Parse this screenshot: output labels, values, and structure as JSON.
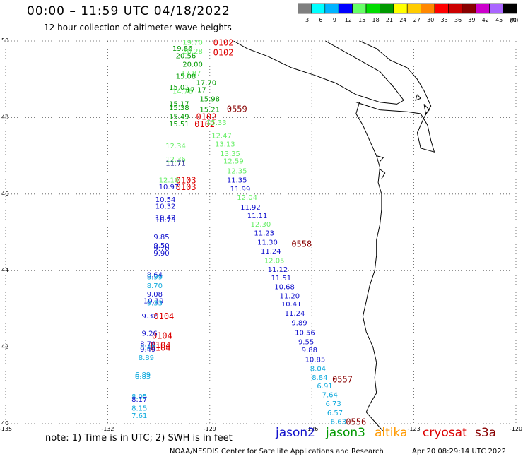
{
  "header": {
    "title": "00:00 – 11:59 UTC 04/18/2022",
    "subtitle": "12 hour collection of altimeter wave heights"
  },
  "colorbar": {
    "colors": [
      "#7f7f7f",
      "#00ffff",
      "#00b4ff",
      "#0000ff",
      "#66ff66",
      "#00dc00",
      "#009900",
      "#ffff00",
      "#ffcc00",
      "#ff8800",
      "#ff0000",
      "#cc0000",
      "#880000",
      "#cc00cc",
      "#aa66ff",
      "#000000"
    ],
    "labels": [
      "3",
      "6",
      "9",
      "12",
      "15",
      "18",
      "21",
      "24",
      "27",
      "30",
      "33",
      "36",
      "39",
      "42",
      "45",
      "70"
    ],
    "unit": "(ft)"
  },
  "axes": {
    "lat_labels": [
      "50",
      "48",
      "46",
      "44",
      "42",
      "40"
    ],
    "lon_labels": [
      "-135",
      "-132",
      "-129",
      "-126",
      "-123",
      "-120"
    ]
  },
  "satellites": [
    {
      "name": "jason2",
      "color": "#1010cc"
    },
    {
      "name": "jason3",
      "color": "#009900"
    },
    {
      "name": "altika",
      "color": "#ff9900"
    },
    {
      "name": "cryosat",
      "color": "#dd0000"
    },
    {
      "name": "s3a",
      "color": "#880000"
    }
  ],
  "footer": {
    "note": "note: 1) Time is in UTC; 2) SWH is in feet",
    "credit": "NOAA/NESDIS Center for Satellite Applications and Research",
    "stamp": "Apr 20 08:29:14 UTC 2022"
  },
  "time_labels": [
    {
      "text": "0102",
      "lon": -128.9,
      "lat": 49.95,
      "color": "#dd0000"
    },
    {
      "text": "0102",
      "lon": -128.9,
      "lat": 49.7,
      "color": "#dd0000"
    },
    {
      "text": "0559",
      "lon": -128.5,
      "lat": 48.22,
      "color": "#880000"
    },
    {
      "text": "0102",
      "lon": -129.4,
      "lat": 48.02,
      "color": "#dd0000"
    },
    {
      "text": "0102",
      "lon": -129.45,
      "lat": 47.82,
      "color": "#dd0000"
    },
    {
      "text": "0103",
      "lon": -130.0,
      "lat": 46.36,
      "color": "#dd0000"
    },
    {
      "text": "0103",
      "lon": -130.0,
      "lat": 46.18,
      "color": "#dd0000"
    },
    {
      "text": "0558",
      "lon": -126.6,
      "lat": 44.7,
      "color": "#880000"
    },
    {
      "text": "0104",
      "lon": -130.65,
      "lat": 42.8,
      "color": "#dd0000"
    },
    {
      "text": "0104",
      "lon": -130.7,
      "lat": 42.3,
      "color": "#dd0000"
    },
    {
      "text": "0104",
      "lon": -130.75,
      "lat": 42.05,
      "color": "#dd0000"
    },
    {
      "text": "0104",
      "lon": -130.75,
      "lat": 41.98,
      "color": "#dd0000"
    },
    {
      "text": "0557",
      "lon": -125.4,
      "lat": 41.15,
      "color": "#880000"
    },
    {
      "text": "0556",
      "lon": -125.0,
      "lat": 40.05,
      "color": "#880000"
    }
  ],
  "observations": [
    {
      "value": "19.70",
      "lon": -129.8,
      "lat": 49.95,
      "color": "#66ee66"
    },
    {
      "value": "19.86",
      "lon": -130.1,
      "lat": 49.8,
      "color": "#009900"
    },
    {
      "value": "20.28",
      "lon": -129.8,
      "lat": 49.72,
      "color": "#66ee66"
    },
    {
      "value": "20.56",
      "lon": -130.0,
      "lat": 49.6,
      "color": "#009900"
    },
    {
      "value": "20.00",
      "lon": -129.8,
      "lat": 49.38,
      "color": "#009900"
    },
    {
      "value": "17.87",
      "lon": -129.85,
      "lat": 49.15,
      "color": "#66ee66"
    },
    {
      "value": "15.08",
      "lon": -130.0,
      "lat": 49.07,
      "color": "#009900"
    },
    {
      "value": "17.70",
      "lon": -129.4,
      "lat": 48.9,
      "color": "#009900"
    },
    {
      "value": "15.01",
      "lon": -130.2,
      "lat": 48.78,
      "color": "#009900"
    },
    {
      "value": "17.17",
      "lon": -129.7,
      "lat": 48.72,
      "color": "#009900"
    },
    {
      "value": "14.76",
      "lon": -130.1,
      "lat": 48.68,
      "color": "#66ee66"
    },
    {
      "value": "15.98",
      "lon": -129.3,
      "lat": 48.48,
      "color": "#009900"
    },
    {
      "value": "15.17",
      "lon": -130.2,
      "lat": 48.35,
      "color": "#009900"
    },
    {
      "value": "15.38",
      "lon": -130.2,
      "lat": 48.25,
      "color": "#009900"
    },
    {
      "value": "15.21",
      "lon": -129.3,
      "lat": 48.2,
      "color": "#009900"
    },
    {
      "value": "15.49",
      "lon": -130.2,
      "lat": 48.02,
      "color": "#009900"
    },
    {
      "value": "15.33",
      "lon": -129.1,
      "lat": 47.86,
      "color": "#66ee66"
    },
    {
      "value": "15.51",
      "lon": -130.2,
      "lat": 47.82,
      "color": "#009900"
    },
    {
      "value": "12.47",
      "lon": -128.95,
      "lat": 47.52,
      "color": "#66ee66"
    },
    {
      "value": "12.34",
      "lon": -130.3,
      "lat": 47.25,
      "color": "#66ee66"
    },
    {
      "value": "13.13",
      "lon": -128.85,
      "lat": 47.3,
      "color": "#66ee66"
    },
    {
      "value": "13.35",
      "lon": -128.7,
      "lat": 47.05,
      "color": "#66ee66"
    },
    {
      "value": "12.36",
      "lon": -130.3,
      "lat": 46.9,
      "color": "#66ee66"
    },
    {
      "value": "11.71",
      "lon": -130.3,
      "lat": 46.8,
      "color": "#000080"
    },
    {
      "value": "12.59",
      "lon": -128.6,
      "lat": 46.85,
      "color": "#66ee66"
    },
    {
      "value": "12.35",
      "lon": -128.5,
      "lat": 46.6,
      "color": "#66ee66"
    },
    {
      "value": "12.10",
      "lon": -130.5,
      "lat": 46.36,
      "color": "#66ee66"
    },
    {
      "value": "11.35",
      "lon": -128.5,
      "lat": 46.36,
      "color": "#1010cc"
    },
    {
      "value": "10.97",
      "lon": -130.5,
      "lat": 46.18,
      "color": "#1010cc"
    },
    {
      "value": "11.99",
      "lon": -128.4,
      "lat": 46.13,
      "color": "#1010cc"
    },
    {
      "value": "12.04",
      "lon": -128.2,
      "lat": 45.9,
      "color": "#66ee66"
    },
    {
      "value": "10.54",
      "lon": -130.6,
      "lat": 45.85,
      "color": "#1010cc"
    },
    {
      "value": "10.32",
      "lon": -130.6,
      "lat": 45.67,
      "color": "#1010cc"
    },
    {
      "value": "11.92",
      "lon": -128.1,
      "lat": 45.65,
      "color": "#1010cc"
    },
    {
      "value": "10.42",
      "lon": -130.6,
      "lat": 45.38,
      "color": "#1010cc"
    },
    {
      "value": "10.73",
      "lon": -130.6,
      "lat": 45.31,
      "color": "#1010cc"
    },
    {
      "value": "11.11",
      "lon": -127.9,
      "lat": 45.42,
      "color": "#1010cc"
    },
    {
      "value": "12.30",
      "lon": -127.8,
      "lat": 45.2,
      "color": "#66ee66"
    },
    {
      "value": "11.23",
      "lon": -127.7,
      "lat": 44.97,
      "color": "#1010cc"
    },
    {
      "value": "9.85",
      "lon": -130.65,
      "lat": 44.87,
      "color": "#1010cc"
    },
    {
      "value": "11.30",
      "lon": -127.6,
      "lat": 44.73,
      "color": "#1010cc"
    },
    {
      "value": "9.50",
      "lon": -130.65,
      "lat": 44.65,
      "color": "#1010cc"
    },
    {
      "value": "9.70",
      "lon": -130.65,
      "lat": 44.58,
      "color": "#1010cc"
    },
    {
      "value": "11.24",
      "lon": -127.5,
      "lat": 44.5,
      "color": "#1010cc"
    },
    {
      "value": "9.90",
      "lon": -130.65,
      "lat": 44.45,
      "color": "#1010cc"
    },
    {
      "value": "12.05",
      "lon": -127.4,
      "lat": 44.25,
      "color": "#66ee66"
    },
    {
      "value": "11.12",
      "lon": -127.3,
      "lat": 44.02,
      "color": "#1010cc"
    },
    {
      "value": "8.64",
      "lon": -130.85,
      "lat": 43.88,
      "color": "#1010cc"
    },
    {
      "value": "8.99",
      "lon": -130.85,
      "lat": 43.83,
      "color": "#11aadd"
    },
    {
      "value": "11.51",
      "lon": -127.2,
      "lat": 43.8,
      "color": "#1010cc"
    },
    {
      "value": "8.70",
      "lon": -130.85,
      "lat": 43.6,
      "color": "#11aadd"
    },
    {
      "value": "10.68",
      "lon": -127.1,
      "lat": 43.57,
      "color": "#1010cc"
    },
    {
      "value": "9.08",
      "lon": -130.85,
      "lat": 43.38,
      "color": "#1010cc"
    },
    {
      "value": "11.20",
      "lon": -126.95,
      "lat": 43.33,
      "color": "#1010cc"
    },
    {
      "value": "10.19",
      "lon": -130.95,
      "lat": 43.2,
      "color": "#1010cc"
    },
    {
      "value": "9.33",
      "lon": -130.85,
      "lat": 43.15,
      "color": "#11aadd"
    },
    {
      "value": "10.41",
      "lon": -126.9,
      "lat": 43.12,
      "color": "#1010cc"
    },
    {
      "value": "9.32",
      "lon": -131.0,
      "lat": 42.8,
      "color": "#1010cc"
    },
    {
      "value": "11.24",
      "lon": -126.8,
      "lat": 42.88,
      "color": "#1010cc"
    },
    {
      "value": "9.89",
      "lon": -126.6,
      "lat": 42.63,
      "color": "#1010cc"
    },
    {
      "value": "9.26",
      "lon": -131.0,
      "lat": 42.35,
      "color": "#1010cc"
    },
    {
      "value": "10.56",
      "lon": -126.5,
      "lat": 42.37,
      "color": "#1010cc"
    },
    {
      "value": "8.70",
      "lon": -131.05,
      "lat": 42.08,
      "color": "#1010cc"
    },
    {
      "value": "9.55",
      "lon": -126.4,
      "lat": 42.13,
      "color": "#1010cc"
    },
    {
      "value": "8.48",
      "lon": -131.05,
      "lat": 41.98,
      "color": "#11aadd"
    },
    {
      "value": "9.49",
      "lon": -131.05,
      "lat": 41.94,
      "color": "#1010cc"
    },
    {
      "value": "9.88",
      "lon": -126.3,
      "lat": 41.92,
      "color": "#1010cc"
    },
    {
      "value": "8.89",
      "lon": -131.1,
      "lat": 41.72,
      "color": "#11aadd"
    },
    {
      "value": "10.85",
      "lon": -126.2,
      "lat": 41.67,
      "color": "#1010cc"
    },
    {
      "value": "8.04",
      "lon": -126.05,
      "lat": 41.43,
      "color": "#11aadd"
    },
    {
      "value": "6.89",
      "lon": -131.2,
      "lat": 41.27,
      "color": "#11aadd"
    },
    {
      "value": "6.83",
      "lon": -131.2,
      "lat": 41.22,
      "color": "#11aadd"
    },
    {
      "value": "8.84",
      "lon": -126.0,
      "lat": 41.2,
      "color": "#11aadd"
    },
    {
      "value": "6.91",
      "lon": -125.85,
      "lat": 40.98,
      "color": "#11aadd"
    },
    {
      "value": "7.64",
      "lon": -125.7,
      "lat": 40.75,
      "color": "#11aadd"
    },
    {
      "value": "8.05",
      "lon": -131.3,
      "lat": 40.7,
      "color": "#11aadd"
    },
    {
      "value": "8.17",
      "lon": -131.3,
      "lat": 40.63,
      "color": "#1010cc"
    },
    {
      "value": "6.73",
      "lon": -125.6,
      "lat": 40.52,
      "color": "#11aadd"
    },
    {
      "value": "8.15",
      "lon": -131.3,
      "lat": 40.4,
      "color": "#11aadd"
    },
    {
      "value": "6.57",
      "lon": -125.55,
      "lat": 40.28,
      "color": "#11aadd"
    },
    {
      "value": "7.61",
      "lon": -131.3,
      "lat": 40.2,
      "color": "#11aadd"
    },
    {
      "value": "6.63",
      "lon": -125.45,
      "lat": 40.05,
      "color": "#11aadd"
    }
  ]
}
